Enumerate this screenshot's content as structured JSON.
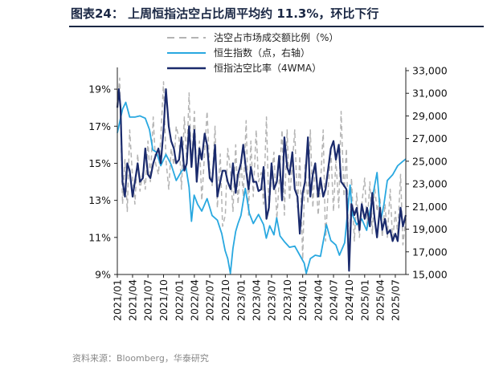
{
  "title": "图表24： 上周恒指沽空占比周平均约 11.3%，环比下行",
  "source": "资料来源：Bloomberg，华泰研究",
  "colors": {
    "short_ratio": "#b4b4b4",
    "hsi": "#29a8e0",
    "short_ratio_4wma": "#1a2a6c",
    "header": "#1a2744"
  },
  "chart_data": {
    "type": "line",
    "legend_position": "top-center",
    "x_ticks": [
      "2021/01",
      "2021/04",
      "2021/07",
      "2021/10",
      "2022/01",
      "2022/04",
      "2022/07",
      "2022/10",
      "2023/01",
      "2023/04",
      "2023/07",
      "2023/10",
      "2024/01",
      "2024/04",
      "2024/07",
      "2024/10",
      "2025/01",
      "2025/04",
      "2025/07"
    ],
    "x_range": [
      "2021/01",
      "2025/09"
    ],
    "y_left": {
      "range": [
        9,
        20
      ],
      "ticks": [
        "9%",
        "11%",
        "13%",
        "15%",
        "17%",
        "19%"
      ],
      "unit": "%"
    },
    "y_right": {
      "range": [
        15000,
        33000
      ],
      "ticks": [
        "15,000",
        "17,000",
        "19,000",
        "21,000",
        "23,000",
        "25,000",
        "27,000",
        "29,000",
        "31,000",
        "33,000"
      ]
    },
    "series": [
      {
        "name": "沽空占市场成交额比例（%）",
        "axis": "left",
        "style": "dashed",
        "x": [
          "2021/01/01",
          "2021/01/15",
          "2021/02/01",
          "2021/02/15",
          "2021/03/01",
          "2021/03/15",
          "2021/04/01",
          "2021/04/15",
          "2021/05/01",
          "2021/05/15",
          "2021/06/01",
          "2021/06/15",
          "2021/07/01",
          "2021/07/15",
          "2021/08/01",
          "2021/08/15",
          "2021/09/01",
          "2021/09/15",
          "2021/10/01",
          "2021/10/15",
          "2021/11/01",
          "2021/11/15",
          "2021/12/01",
          "2021/12/15",
          "2022/01/01",
          "2022/01/15",
          "2022/02/01",
          "2022/02/15",
          "2022/03/01",
          "2022/03/15",
          "2022/04/01",
          "2022/04/15",
          "2022/05/01",
          "2022/05/15",
          "2022/06/01",
          "2022/06/15",
          "2022/07/01",
          "2022/07/15",
          "2022/08/01",
          "2022/08/15",
          "2022/09/01",
          "2022/09/15",
          "2022/10/01",
          "2022/10/15",
          "2022/11/01",
          "2022/11/15",
          "2022/12/01",
          "2022/12/15",
          "2023/01/01",
          "2023/01/15",
          "2023/02/01",
          "2023/02/15",
          "2023/03/01",
          "2023/03/15",
          "2023/04/01",
          "2023/04/15",
          "2023/05/01",
          "2023/05/15",
          "2023/06/01",
          "2023/06/15",
          "2023/07/01",
          "2023/07/15",
          "2023/08/01",
          "2023/08/15",
          "2023/09/01",
          "2023/09/15",
          "2023/10/01",
          "2023/10/15",
          "2023/11/01",
          "2023/11/15",
          "2023/12/01",
          "2023/12/15",
          "2024/01/01",
          "2024/01/15",
          "2024/02/01",
          "2024/02/15",
          "2024/03/01",
          "2024/03/15",
          "2024/04/01",
          "2024/04/15",
          "2024/05/01",
          "2024/05/15",
          "2024/06/01",
          "2024/06/15",
          "2024/07/01",
          "2024/07/15",
          "2024/08/01",
          "2024/08/15",
          "2024/09/01",
          "2024/09/15",
          "2024/10/01",
          "2024/10/15",
          "2024/11/01",
          "2024/11/15",
          "2024/12/01",
          "2024/12/15",
          "2025/01/01",
          "2025/01/15",
          "2025/02/01",
          "2025/02/15",
          "2025/03/01",
          "2025/03/15",
          "2025/04/01",
          "2025/04/15",
          "2025/05/01",
          "2025/05/15",
          "2025/06/01",
          "2025/06/15",
          "2025/07/01",
          "2025/07/15",
          "2025/08/01",
          "2025/08/15",
          "2025/09/01"
        ],
        "values": [
          18.2,
          19.6,
          12.8,
          15.2,
          12.4,
          16.8,
          14.2,
          12.8,
          15.5,
          13.5,
          14.6,
          13.6,
          16.2,
          14.0,
          17.5,
          15.0,
          14.4,
          16.4,
          19.4,
          15.2,
          13.6,
          15.8,
          14.9,
          17.0,
          16.3,
          13.6,
          17.5,
          15.0,
          18.8,
          14.8,
          17.8,
          14.4,
          16.2,
          13.0,
          15.6,
          17.8,
          14.6,
          13.8,
          17.0,
          12.6,
          15.5,
          11.6,
          12.2,
          15.8,
          14.6,
          12.4,
          16.0,
          12.8,
          15.2,
          13.2,
          17.3,
          12.2,
          16.2,
          13.2,
          16.8,
          14.0,
          14.5,
          12.8,
          17.5,
          12.4,
          14.3,
          15.6,
          12.0,
          14.0,
          16.8,
          12.2,
          16.8,
          13.0,
          15.0,
          16.8,
          12.6,
          15.4,
          9.8,
          15.0,
          12.8,
          16.8,
          12.6,
          15.0,
          12.2,
          13.8,
          16.8,
          10.8,
          13.8,
          15.8,
          12.4,
          15.2,
          12.6,
          17.8,
          13.2,
          15.8,
          9.4,
          14.2,
          10.8,
          13.4,
          11.0,
          12.8,
          14.2,
          11.6,
          14.0,
          11.2,
          13.8,
          12.4,
          13.2,
          11.0,
          12.8,
          11.0,
          13.6,
          10.8,
          12.4,
          11.2,
          14.4,
          10.6,
          12.0
        ]
      },
      {
        "name": "恒生指数（点，右轴）",
        "axis": "right",
        "style": "solid",
        "x": [
          "2021/01/01",
          "2021/02/01",
          "2021/02/20",
          "2021/03/15",
          "2021/04/15",
          "2021/05/15",
          "2021/06/15",
          "2021/07/10",
          "2021/07/30",
          "2021/08/20",
          "2021/09/15",
          "2021/10/15",
          "2021/11/15",
          "2021/12/15",
          "2022/01/15",
          "2022/02/10",
          "2022/03/01",
          "2022/03/15",
          "2022/03/31",
          "2022/04/20",
          "2022/05/15",
          "2022/06/15",
          "2022/07/15",
          "2022/08/15",
          "2022/09/10",
          "2022/09/30",
          "2022/10/15",
          "2022/10/31",
          "2022/11/15",
          "2022/12/01",
          "2022/12/15",
          "2023/01/01",
          "2023/01/27",
          "2023/02/20",
          "2023/03/15",
          "2023/04/15",
          "2023/05/15",
          "2023/05/31",
          "2023/06/20",
          "2023/07/15",
          "2023/07/31",
          "2023/08/20",
          "2023/09/15",
          "2023/10/15",
          "2023/11/15",
          "2023/12/15",
          "2024/01/10",
          "2024/01/22",
          "2024/02/15",
          "2024/03/15",
          "2024/04/15",
          "2024/05/20",
          "2024/06/15",
          "2024/07/15",
          "2024/08/05",
          "2024/09/05",
          "2024/09/25",
          "2024/10/07",
          "2024/10/20",
          "2024/11/15",
          "2024/12/15",
          "2025/01/13",
          "2025/02/10",
          "2025/03/15",
          "2025/04/07",
          "2025/04/25",
          "2025/05/15",
          "2025/06/15",
          "2025/07/15",
          "2025/08/15",
          "2025/09/01"
        ],
        "values": [
          27500,
          29600,
          30200,
          28900,
          28900,
          29000,
          28800,
          27800,
          26000,
          25800,
          24600,
          25600,
          24700,
          23300,
          24100,
          24500,
          22700,
          19700,
          22000,
          21200,
          20600,
          21700,
          20200,
          19800,
          18600,
          17100,
          16400,
          15100,
          17300,
          18800,
          19500,
          20200,
          22600,
          20400,
          19500,
          20300,
          19400,
          18200,
          19300,
          18500,
          20000,
          18400,
          17900,
          17400,
          17500,
          16700,
          16000,
          15100,
          16400,
          16700,
          16600,
          19400,
          18000,
          17600,
          16700,
          17800,
          21000,
          22900,
          20300,
          19400,
          19900,
          18900,
          21300,
          24000,
          19800,
          21200,
          23300,
          23800,
          24600,
          25000,
          25200
        ]
      },
      {
        "name": "恒指沽空比率（4WMA）",
        "axis": "left",
        "style": "solid",
        "x": [
          "2021/01/01",
          "2021/01/10",
          "2021/01/20",
          "2021/02/01",
          "2021/02/15",
          "2021/03/01",
          "2021/03/15",
          "2021/04/01",
          "2021/04/15",
          "2021/05/01",
          "2021/05/15",
          "2021/06/01",
          "2021/06/15",
          "2021/07/01",
          "2021/07/15",
          "2021/08/01",
          "2021/08/15",
          "2021/09/01",
          "2021/09/15",
          "2021/10/01",
          "2021/10/15",
          "2021/11/01",
          "2021/11/15",
          "2021/12/01",
          "2021/12/15",
          "2022/01/01",
          "2022/01/15",
          "2022/02/01",
          "2022/02/15",
          "2022/03/01",
          "2022/03/15",
          "2022/04/01",
          "2022/04/15",
          "2022/05/01",
          "2022/05/15",
          "2022/06/01",
          "2022/06/15",
          "2022/07/01",
          "2022/07/15",
          "2022/08/01",
          "2022/08/15",
          "2022/09/01",
          "2022/09/15",
          "2022/10/01",
          "2022/10/15",
          "2022/11/01",
          "2022/11/15",
          "2022/12/01",
          "2022/12/15",
          "2023/01/01",
          "2023/01/15",
          "2023/02/01",
          "2023/02/15",
          "2023/03/01",
          "2023/03/15",
          "2023/04/01",
          "2023/04/15",
          "2023/05/01",
          "2023/05/15",
          "2023/06/01",
          "2023/06/15",
          "2023/07/01",
          "2023/07/15",
          "2023/08/01",
          "2023/08/15",
          "2023/09/01",
          "2023/09/15",
          "2023/10/01",
          "2023/10/15",
          "2023/11/01",
          "2023/11/15",
          "2023/12/01",
          "2023/12/15",
          "2024/01/01",
          "2024/01/15",
          "2024/02/01",
          "2024/02/15",
          "2024/03/01",
          "2024/03/15",
          "2024/04/01",
          "2024/04/15",
          "2024/05/01",
          "2024/05/15",
          "2024/06/01",
          "2024/06/15",
          "2024/07/01",
          "2024/07/15",
          "2024/08/01",
          "2024/08/15",
          "2024/09/01",
          "2024/09/15",
          "2024/10/01",
          "2024/10/15",
          "2024/11/01",
          "2024/11/15",
          "2024/12/01",
          "2024/12/15",
          "2025/01/01",
          "2025/01/15",
          "2025/02/01",
          "2025/02/15",
          "2025/03/01",
          "2025/03/15",
          "2025/04/01",
          "2025/04/15",
          "2025/05/01",
          "2025/05/15",
          "2025/06/01",
          "2025/06/15",
          "2025/07/01",
          "2025/07/15",
          "2025/08/01",
          "2025/08/15",
          "2025/09/01"
        ],
        "values": [
          18.0,
          19.0,
          18.0,
          14.0,
          13.2,
          15.0,
          14.6,
          13.2,
          14.0,
          15.0,
          14.0,
          14.2,
          15.8,
          14.4,
          14.2,
          15.0,
          15.4,
          15.8,
          15.0,
          16.8,
          19.0,
          17.0,
          16.2,
          15.8,
          15.0,
          15.2,
          16.4,
          14.6,
          15.0,
          17.0,
          14.8,
          16.8,
          14.0,
          15.8,
          15.2,
          16.6,
          16.0,
          14.2,
          14.0,
          16.0,
          13.2,
          14.0,
          14.6,
          14.6,
          14.0,
          13.6,
          15.0,
          13.4,
          14.4,
          15.0,
          16.0,
          14.6,
          13.6,
          14.8,
          14.0,
          14.0,
          13.5,
          13.6,
          14.8,
          12.0,
          12.6,
          15.0,
          13.6,
          14.0,
          15.4,
          13.0,
          16.4,
          14.8,
          14.4,
          15.6,
          13.6,
          13.2,
          11.2,
          13.4,
          14.0,
          16.4,
          13.2,
          14.4,
          15.0,
          13.2,
          14.2,
          13.2,
          13.6,
          14.8,
          15.8,
          16.2,
          15.2,
          16.0,
          14.0,
          13.8,
          13.6,
          9.2,
          12.8,
          12.2,
          12.6,
          11.4,
          12.8,
          12.0,
          12.6,
          11.6,
          13.4,
          12.0,
          11.0,
          12.6,
          11.4,
          12.0,
          11.2,
          11.4,
          10.8,
          11.2,
          10.8,
          12.6,
          11.6,
          12.2
        ]
      }
    ]
  }
}
